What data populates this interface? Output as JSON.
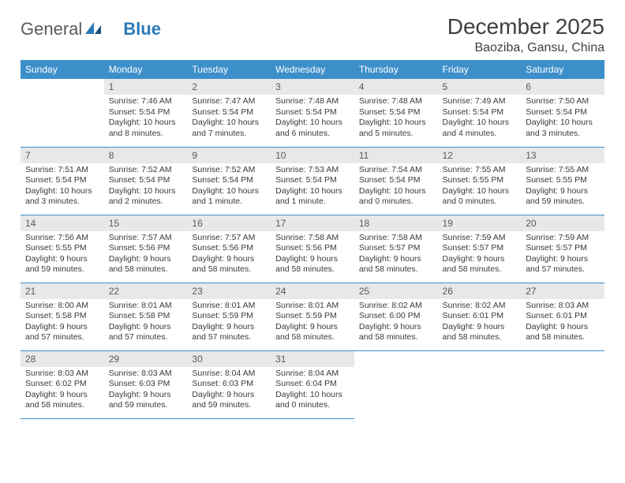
{
  "logo": {
    "text1": "General",
    "text2": "Blue"
  },
  "title": "December 2025",
  "location": "Baoziba, Gansu, China",
  "calendar": {
    "header_bg": "#3d8fc9",
    "header_fg": "#ffffff",
    "daynum_bg": "#e8e8e8",
    "border_color": "#3d8fc9",
    "weekdays": [
      "Sunday",
      "Monday",
      "Tuesday",
      "Wednesday",
      "Thursday",
      "Friday",
      "Saturday"
    ],
    "start_offset": 1,
    "days": [
      {
        "n": "1",
        "sunrise": "7:46 AM",
        "sunset": "5:54 PM",
        "daylight": "10 hours and 8 minutes."
      },
      {
        "n": "2",
        "sunrise": "7:47 AM",
        "sunset": "5:54 PM",
        "daylight": "10 hours and 7 minutes."
      },
      {
        "n": "3",
        "sunrise": "7:48 AM",
        "sunset": "5:54 PM",
        "daylight": "10 hours and 6 minutes."
      },
      {
        "n": "4",
        "sunrise": "7:48 AM",
        "sunset": "5:54 PM",
        "daylight": "10 hours and 5 minutes."
      },
      {
        "n": "5",
        "sunrise": "7:49 AM",
        "sunset": "5:54 PM",
        "daylight": "10 hours and 4 minutes."
      },
      {
        "n": "6",
        "sunrise": "7:50 AM",
        "sunset": "5:54 PM",
        "daylight": "10 hours and 3 minutes."
      },
      {
        "n": "7",
        "sunrise": "7:51 AM",
        "sunset": "5:54 PM",
        "daylight": "10 hours and 3 minutes."
      },
      {
        "n": "8",
        "sunrise": "7:52 AM",
        "sunset": "5:54 PM",
        "daylight": "10 hours and 2 minutes."
      },
      {
        "n": "9",
        "sunrise": "7:52 AM",
        "sunset": "5:54 PM",
        "daylight": "10 hours and 1 minute."
      },
      {
        "n": "10",
        "sunrise": "7:53 AM",
        "sunset": "5:54 PM",
        "daylight": "10 hours and 1 minute."
      },
      {
        "n": "11",
        "sunrise": "7:54 AM",
        "sunset": "5:54 PM",
        "daylight": "10 hours and 0 minutes."
      },
      {
        "n": "12",
        "sunrise": "7:55 AM",
        "sunset": "5:55 PM",
        "daylight": "10 hours and 0 minutes."
      },
      {
        "n": "13",
        "sunrise": "7:55 AM",
        "sunset": "5:55 PM",
        "daylight": "9 hours and 59 minutes."
      },
      {
        "n": "14",
        "sunrise": "7:56 AM",
        "sunset": "5:55 PM",
        "daylight": "9 hours and 59 minutes."
      },
      {
        "n": "15",
        "sunrise": "7:57 AM",
        "sunset": "5:56 PM",
        "daylight": "9 hours and 58 minutes."
      },
      {
        "n": "16",
        "sunrise": "7:57 AM",
        "sunset": "5:56 PM",
        "daylight": "9 hours and 58 minutes."
      },
      {
        "n": "17",
        "sunrise": "7:58 AM",
        "sunset": "5:56 PM",
        "daylight": "9 hours and 58 minutes."
      },
      {
        "n": "18",
        "sunrise": "7:58 AM",
        "sunset": "5:57 PM",
        "daylight": "9 hours and 58 minutes."
      },
      {
        "n": "19",
        "sunrise": "7:59 AM",
        "sunset": "5:57 PM",
        "daylight": "9 hours and 58 minutes."
      },
      {
        "n": "20",
        "sunrise": "7:59 AM",
        "sunset": "5:57 PM",
        "daylight": "9 hours and 57 minutes."
      },
      {
        "n": "21",
        "sunrise": "8:00 AM",
        "sunset": "5:58 PM",
        "daylight": "9 hours and 57 minutes."
      },
      {
        "n": "22",
        "sunrise": "8:01 AM",
        "sunset": "5:58 PM",
        "daylight": "9 hours and 57 minutes."
      },
      {
        "n": "23",
        "sunrise": "8:01 AM",
        "sunset": "5:59 PM",
        "daylight": "9 hours and 57 minutes."
      },
      {
        "n": "24",
        "sunrise": "8:01 AM",
        "sunset": "5:59 PM",
        "daylight": "9 hours and 58 minutes."
      },
      {
        "n": "25",
        "sunrise": "8:02 AM",
        "sunset": "6:00 PM",
        "daylight": "9 hours and 58 minutes."
      },
      {
        "n": "26",
        "sunrise": "8:02 AM",
        "sunset": "6:01 PM",
        "daylight": "9 hours and 58 minutes."
      },
      {
        "n": "27",
        "sunrise": "8:03 AM",
        "sunset": "6:01 PM",
        "daylight": "9 hours and 58 minutes."
      },
      {
        "n": "28",
        "sunrise": "8:03 AM",
        "sunset": "6:02 PM",
        "daylight": "9 hours and 58 minutes."
      },
      {
        "n": "29",
        "sunrise": "8:03 AM",
        "sunset": "6:03 PM",
        "daylight": "9 hours and 59 minutes."
      },
      {
        "n": "30",
        "sunrise": "8:04 AM",
        "sunset": "6:03 PM",
        "daylight": "9 hours and 59 minutes."
      },
      {
        "n": "31",
        "sunrise": "8:04 AM",
        "sunset": "6:04 PM",
        "daylight": "10 hours and 0 minutes."
      }
    ]
  },
  "labels": {
    "sunrise": "Sunrise:",
    "sunset": "Sunset:",
    "daylight": "Daylight:"
  }
}
